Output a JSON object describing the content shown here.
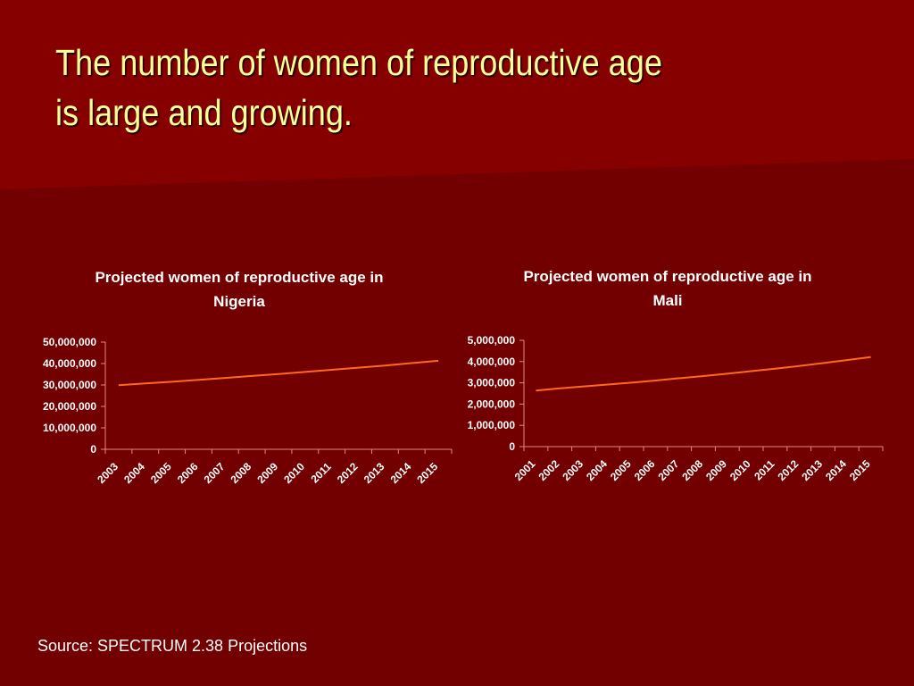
{
  "slide": {
    "title_lines": [
      "The number of women of reproductive age",
      "is large and growing."
    ],
    "source": "Source: SPECTRUM 2.38 Projections",
    "colors": {
      "background": "#720000",
      "band": "#860000",
      "title": "#ffff99",
      "line": "#ff6a1a",
      "axis": "#e08a7a",
      "text": "#ffffff"
    }
  },
  "chart_data": [
    {
      "type": "line",
      "title_lines": [
        "Projected women of reproductive age in",
        "Nigeria"
      ],
      "x": [
        "2003",
        "2004",
        "2005",
        "2006",
        "2007",
        "2008",
        "2009",
        "2010",
        "2011",
        "2012",
        "2013",
        "2014",
        "2015"
      ],
      "series": [
        {
          "values": [
            29900000,
            30700000,
            31500000,
            32400000,
            33300000,
            34200000,
            35100000,
            36100000,
            37100000,
            38100000,
            39100000,
            40200000,
            41300000
          ]
        }
      ],
      "ylim": [
        0,
        50000000
      ],
      "yticks": [
        0,
        10000000,
        20000000,
        30000000,
        40000000,
        50000000
      ],
      "ytick_labels": [
        "0",
        "10,000,000",
        "20,000,000",
        "30,000,000",
        "40,000,000",
        "50,000,000"
      ],
      "grid": false,
      "legend": false
    },
    {
      "type": "line",
      "title_lines": [
        "Projected women of reproductive age in",
        "Mali"
      ],
      "x": [
        "2001",
        "2002",
        "2003",
        "2004",
        "2005",
        "2006",
        "2007",
        "2008",
        "2009",
        "2010",
        "2011",
        "2012",
        "2013",
        "2014",
        "2015"
      ],
      "series": [
        {
          "values": [
            2640000,
            2740000,
            2830000,
            2920000,
            3010000,
            3110000,
            3220000,
            3320000,
            3430000,
            3550000,
            3670000,
            3790000,
            3930000,
            4070000,
            4210000
          ]
        }
      ],
      "ylim": [
        0,
        5000000
      ],
      "yticks": [
        0,
        1000000,
        2000000,
        3000000,
        4000000,
        5000000
      ],
      "ytick_labels": [
        "0",
        "1,000,000",
        "2,000,000",
        "3,000,000",
        "4,000,000",
        "5,000,000"
      ],
      "grid": false,
      "legend": false
    }
  ]
}
